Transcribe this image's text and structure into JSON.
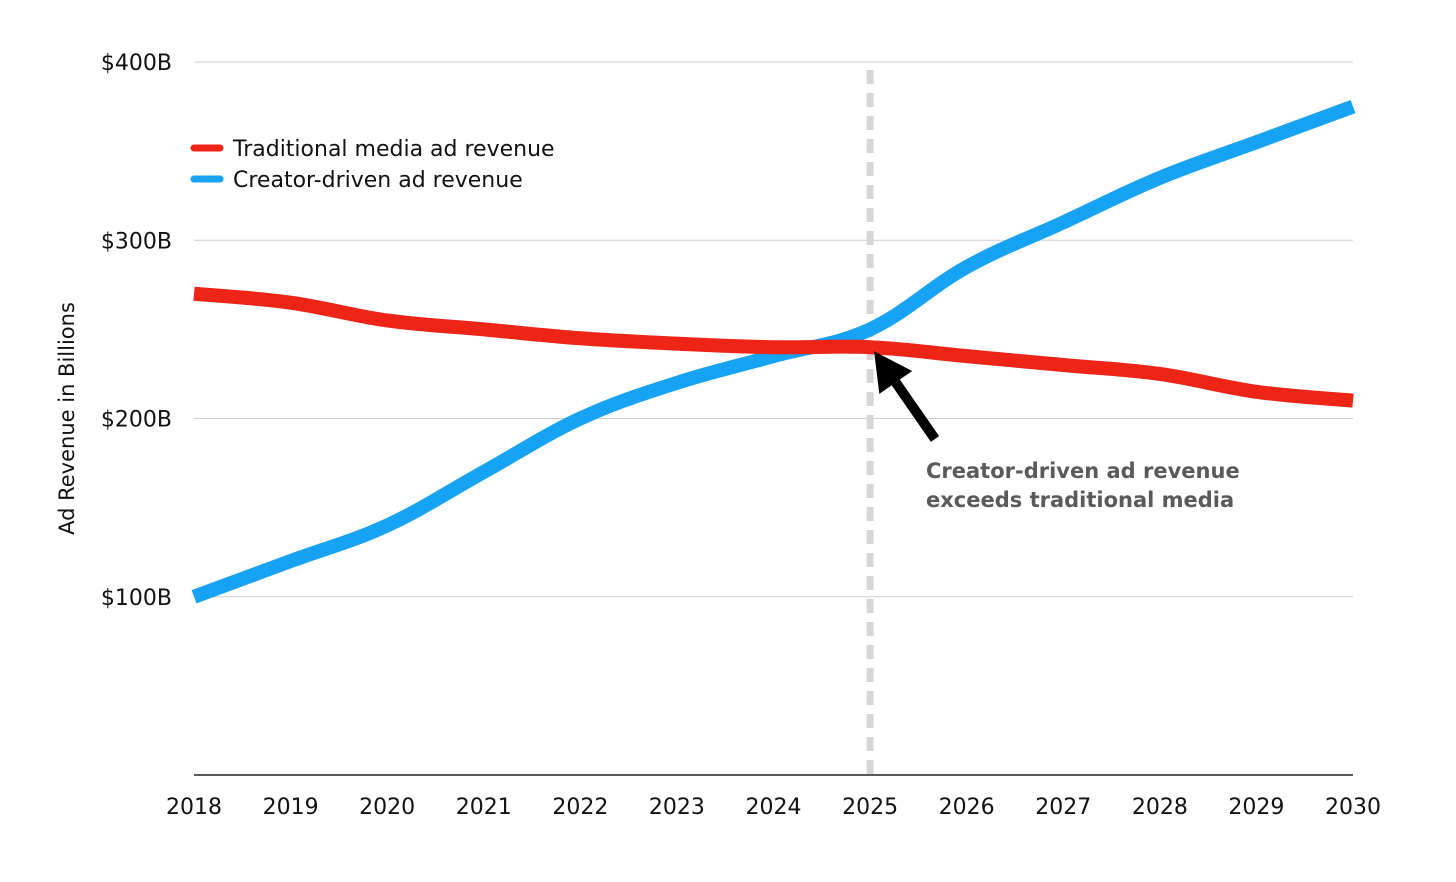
{
  "chart_data": {
    "type": "line",
    "title": "",
    "xlabel": "",
    "ylabel": "Ad Revenue in Billions",
    "x": [
      "2018",
      "2019",
      "2020",
      "2021",
      "2022",
      "2023",
      "2024",
      "2025",
      "2026",
      "2027",
      "2028",
      "2029",
      "2030"
    ],
    "y_ticks": [
      {
        "value": 100,
        "label": "$100B"
      },
      {
        "value": 200,
        "label": "$200B"
      },
      {
        "value": 300,
        "label": "$300B"
      },
      {
        "value": 400,
        "label": "$400B"
      }
    ],
    "ylim": [
      0,
      400
    ],
    "grid": true,
    "legend_position": "top-left",
    "series": [
      {
        "name": "Traditional media ad revenue",
        "color": "#ee2416",
        "values": [
          270,
          265,
          255,
          250,
          245,
          242,
          240,
          240,
          235,
          230,
          225,
          215,
          210
        ]
      },
      {
        "name": "Creator-driven ad revenue",
        "color": "#16a3f4",
        "values": [
          100,
          120,
          140,
          170,
          200,
          220,
          235,
          250,
          285,
          310,
          335,
          355,
          375
        ]
      }
    ],
    "reference_line": {
      "x": "2025",
      "style": "dashed",
      "color": "#d6d6d6"
    },
    "annotation": {
      "x": "2025",
      "y": 240,
      "lines": [
        "Creator-driven ad revenue",
        "exceeds traditional media"
      ]
    }
  }
}
